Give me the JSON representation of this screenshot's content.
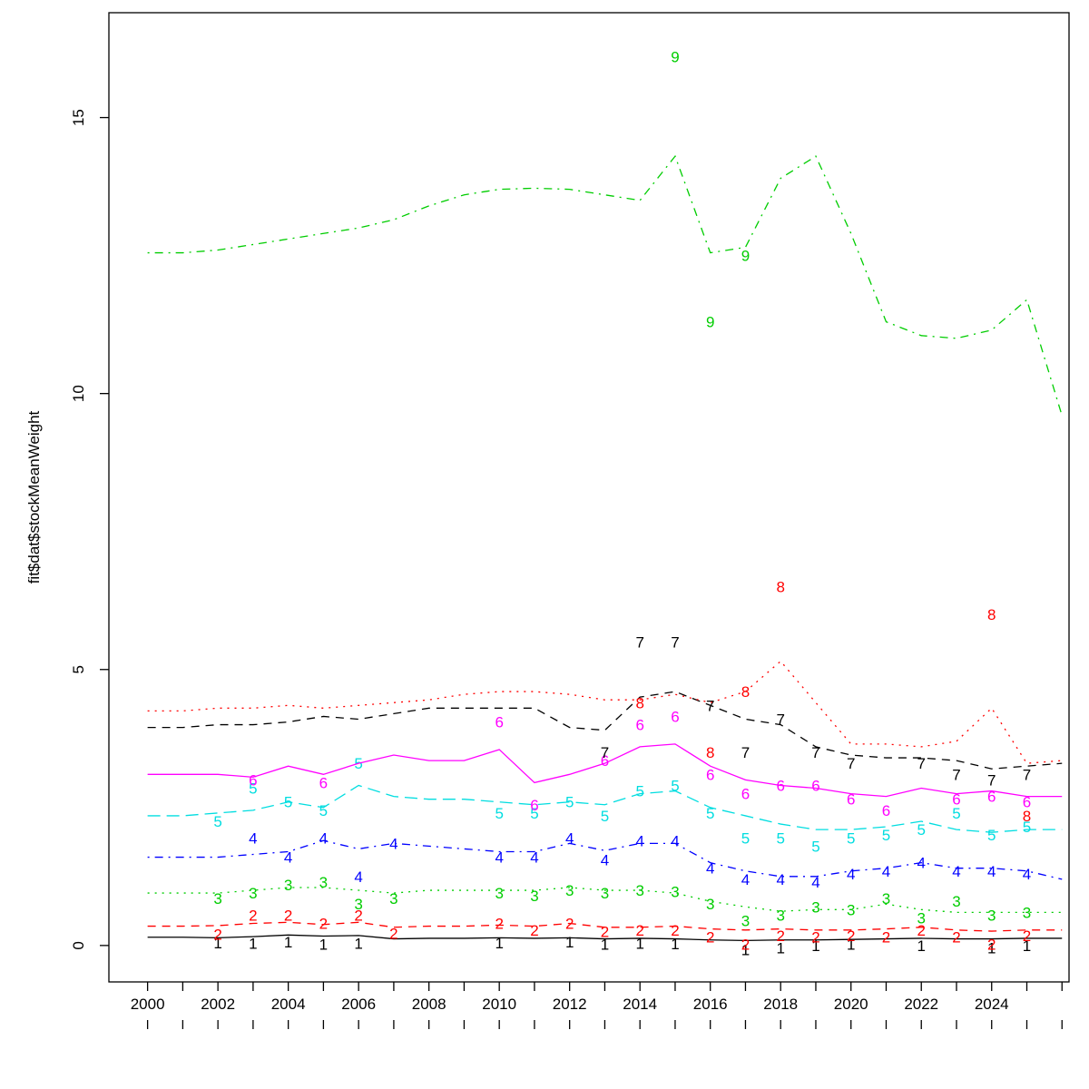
{
  "chart_data": {
    "type": "line",
    "title": "",
    "xlabel": "",
    "ylabel": "fit$dat$stockMeanWeight",
    "grid": false,
    "legend": "none",
    "x_domain": [
      1998.9,
      2026.2
    ],
    "y_domain": [
      -0.66,
      16.9
    ],
    "x_ticks": [
      2000,
      2001,
      2002,
      2003,
      2004,
      2005,
      2006,
      2007,
      2008,
      2009,
      2010,
      2011,
      2012,
      2013,
      2014,
      2015,
      2016,
      2017,
      2018,
      2019,
      2020,
      2021,
      2022,
      2023,
      2024,
      2025,
      2026
    ],
    "x_tick_labels": [
      2000,
      2002,
      2004,
      2006,
      2008,
      2010,
      2012,
      2014,
      2016,
      2018,
      2020,
      2022,
      2024
    ],
    "y_ticks": [
      0,
      5,
      10,
      15
    ],
    "years": [
      2000,
      2001,
      2002,
      2003,
      2004,
      2005,
      2006,
      2007,
      2008,
      2009,
      2010,
      2011,
      2012,
      2013,
      2014,
      2015,
      2016,
      2017,
      2018,
      2019,
      2020,
      2021,
      2022,
      2023,
      2024,
      2025,
      2026
    ],
    "series": [
      {
        "age": 1,
        "label": "1",
        "color": "#000000",
        "linetype": "solid",
        "values": [
          0.15,
          0.15,
          0.14,
          0.16,
          0.19,
          0.17,
          0.18,
          0.12,
          0.13,
          0.13,
          0.14,
          0.13,
          0.14,
          0.12,
          0.13,
          0.12,
          0.1,
          0.09,
          0.1,
          0.1,
          0.11,
          0.12,
          0.13,
          0.12,
          0.12,
          0.13,
          0.13
        ],
        "obs": [
          [
            2002,
            0.05
          ],
          [
            2003,
            0.04
          ],
          [
            2004,
            0.06
          ],
          [
            2005,
            0.02
          ],
          [
            2006,
            0.04
          ],
          [
            2010,
            0.05
          ],
          [
            2012,
            0.06
          ],
          [
            2013,
            0.02
          ],
          [
            2014,
            0.04
          ],
          [
            2015,
            0.03
          ],
          [
            2017,
            -0.08
          ],
          [
            2018,
            -0.04
          ],
          [
            2019,
            0.0
          ],
          [
            2020,
            0.02
          ],
          [
            2022,
            0.0
          ],
          [
            2024,
            -0.04
          ],
          [
            2025,
            0.0
          ]
        ]
      },
      {
        "age": 2,
        "label": "2",
        "color": "#ff0000",
        "linetype": "dashed",
        "values": [
          0.35,
          0.35,
          0.36,
          0.4,
          0.42,
          0.38,
          0.42,
          0.33,
          0.35,
          0.35,
          0.37,
          0.35,
          0.4,
          0.33,
          0.33,
          0.35,
          0.3,
          0.28,
          0.3,
          0.28,
          0.28,
          0.3,
          0.33,
          0.28,
          0.26,
          0.28,
          0.28
        ],
        "obs": [
          [
            2002,
            0.2
          ],
          [
            2003,
            0.55
          ],
          [
            2004,
            0.55
          ],
          [
            2005,
            0.4
          ],
          [
            2006,
            0.55
          ],
          [
            2007,
            0.22
          ],
          [
            2010,
            0.4
          ],
          [
            2011,
            0.28
          ],
          [
            2012,
            0.4
          ],
          [
            2013,
            0.25
          ],
          [
            2014,
            0.28
          ],
          [
            2015,
            0.28
          ],
          [
            2016,
            0.15
          ],
          [
            2017,
            0.02
          ],
          [
            2018,
            0.18
          ],
          [
            2019,
            0.15
          ],
          [
            2020,
            0.18
          ],
          [
            2021,
            0.15
          ],
          [
            2022,
            0.28
          ],
          [
            2023,
            0.15
          ],
          [
            2024,
            0.02
          ],
          [
            2025,
            0.18
          ]
        ]
      },
      {
        "age": 3,
        "label": "3",
        "color": "#00cd00",
        "linetype": "dotted",
        "values": [
          0.95,
          0.95,
          0.95,
          1.0,
          1.05,
          1.05,
          1.0,
          0.95,
          1.0,
          1.0,
          1.0,
          1.0,
          1.05,
          1.0,
          1.0,
          0.95,
          0.8,
          0.7,
          0.62,
          0.65,
          0.65,
          0.75,
          0.65,
          0.6,
          0.6,
          0.6,
          0.6
        ],
        "obs": [
          [
            2002,
            0.85
          ],
          [
            2003,
            0.95
          ],
          [
            2004,
            1.1
          ],
          [
            2005,
            1.15
          ],
          [
            2006,
            0.75
          ],
          [
            2007,
            0.85
          ],
          [
            2010,
            0.95
          ],
          [
            2011,
            0.9
          ],
          [
            2012,
            1.0
          ],
          [
            2013,
            0.95
          ],
          [
            2014,
            1.0
          ],
          [
            2015,
            0.98
          ],
          [
            2016,
            0.75
          ],
          [
            2017,
            0.45
          ],
          [
            2018,
            0.55
          ],
          [
            2019,
            0.7
          ],
          [
            2020,
            0.65
          ],
          [
            2021,
            0.85
          ],
          [
            2022,
            0.5
          ],
          [
            2023,
            0.8
          ],
          [
            2024,
            0.55
          ],
          [
            2025,
            0.6
          ]
        ]
      },
      {
        "age": 4,
        "label": "4",
        "color": "#0000ff",
        "linetype": "dotdash",
        "values": [
          1.6,
          1.6,
          1.6,
          1.65,
          1.7,
          1.9,
          1.75,
          1.85,
          1.8,
          1.75,
          1.7,
          1.7,
          1.85,
          1.72,
          1.85,
          1.85,
          1.5,
          1.35,
          1.25,
          1.25,
          1.35,
          1.4,
          1.5,
          1.4,
          1.4,
          1.35,
          1.2
        ],
        "obs": [
          [
            2003,
            1.95
          ],
          [
            2004,
            1.6
          ],
          [
            2005,
            1.95
          ],
          [
            2006,
            1.25
          ],
          [
            2007,
            1.85
          ],
          [
            2010,
            1.6
          ],
          [
            2011,
            1.6
          ],
          [
            2012,
            1.95
          ],
          [
            2013,
            1.55
          ],
          [
            2014,
            1.9
          ],
          [
            2015,
            1.9
          ],
          [
            2016,
            1.4
          ],
          [
            2017,
            1.2
          ],
          [
            2018,
            1.2
          ],
          [
            2019,
            1.15
          ],
          [
            2020,
            1.3
          ],
          [
            2021,
            1.35
          ],
          [
            2022,
            1.5
          ],
          [
            2023,
            1.35
          ],
          [
            2024,
            1.35
          ],
          [
            2025,
            1.3
          ]
        ]
      },
      {
        "age": 5,
        "label": "5",
        "color": "#00dde0",
        "linetype": "longdash",
        "values": [
          2.35,
          2.35,
          2.4,
          2.45,
          2.6,
          2.5,
          2.9,
          2.7,
          2.65,
          2.65,
          2.6,
          2.55,
          2.6,
          2.55,
          2.75,
          2.8,
          2.5,
          2.35,
          2.2,
          2.1,
          2.1,
          2.15,
          2.25,
          2.1,
          2.05,
          2.1,
          2.1
        ],
        "obs": [
          [
            2002,
            2.25
          ],
          [
            2003,
            2.85
          ],
          [
            2004,
            2.6
          ],
          [
            2005,
            2.45
          ],
          [
            2006,
            3.3
          ],
          [
            2010,
            2.4
          ],
          [
            2011,
            2.4
          ],
          [
            2012,
            2.6
          ],
          [
            2013,
            2.35
          ],
          [
            2014,
            2.8
          ],
          [
            2015,
            2.9
          ],
          [
            2016,
            2.4
          ],
          [
            2017,
            1.95
          ],
          [
            2018,
            1.95
          ],
          [
            2019,
            1.8
          ],
          [
            2020,
            1.95
          ],
          [
            2021,
            2.0
          ],
          [
            2022,
            2.1
          ],
          [
            2023,
            2.4
          ],
          [
            2024,
            2.0
          ],
          [
            2025,
            2.15
          ]
        ]
      },
      {
        "age": 6,
        "label": "6",
        "color": "#ff00ff",
        "linetype": "solid",
        "values": [
          3.1,
          3.1,
          3.1,
          3.05,
          3.25,
          3.1,
          3.3,
          3.45,
          3.35,
          3.35,
          3.55,
          2.95,
          3.1,
          3.3,
          3.6,
          3.65,
          3.25,
          3.0,
          2.9,
          2.85,
          2.75,
          2.7,
          2.85,
          2.75,
          2.8,
          2.7,
          2.7
        ],
        "obs": [
          [
            2003,
            3.0
          ],
          [
            2005,
            2.95
          ],
          [
            2010,
            4.05
          ],
          [
            2011,
            2.55
          ],
          [
            2013,
            3.35
          ],
          [
            2014,
            4.0
          ],
          [
            2015,
            4.15
          ],
          [
            2016,
            3.1
          ],
          [
            2017,
            2.75
          ],
          [
            2018,
            2.9
          ],
          [
            2019,
            2.9
          ],
          [
            2020,
            2.65
          ],
          [
            2021,
            2.45
          ],
          [
            2023,
            2.65
          ],
          [
            2024,
            2.7
          ],
          [
            2025,
            2.6
          ]
        ]
      },
      {
        "age": 7,
        "label": "7",
        "color": "#000000",
        "linetype": "dashed",
        "values": [
          3.95,
          3.95,
          4.0,
          4.0,
          4.05,
          4.15,
          4.1,
          4.2,
          4.3,
          4.3,
          4.3,
          4.3,
          3.95,
          3.9,
          4.5,
          4.6,
          4.35,
          4.1,
          4.0,
          3.6,
          3.45,
          3.4,
          3.4,
          3.35,
          3.2,
          3.25,
          3.3
        ],
        "obs": [
          [
            2013,
            3.5
          ],
          [
            2014,
            5.5
          ],
          [
            2015,
            5.5
          ],
          [
            2016,
            4.35
          ],
          [
            2017,
            3.5
          ],
          [
            2018,
            4.1
          ],
          [
            2019,
            3.5
          ],
          [
            2020,
            3.3
          ],
          [
            2022,
            3.3
          ],
          [
            2023,
            3.1
          ],
          [
            2024,
            3.0
          ],
          [
            2025,
            3.1
          ]
        ]
      },
      {
        "age": 8,
        "label": "8",
        "color": "#ff0000",
        "linetype": "dotted",
        "values": [
          4.25,
          4.25,
          4.3,
          4.3,
          4.35,
          4.3,
          4.35,
          4.4,
          4.45,
          4.55,
          4.6,
          4.6,
          4.55,
          4.45,
          4.45,
          4.55,
          4.4,
          4.6,
          5.15,
          4.4,
          3.65,
          3.65,
          3.6,
          3.7,
          4.3,
          3.3,
          3.35
        ],
        "obs": [
          [
            2014,
            4.4
          ],
          [
            2016,
            3.5
          ],
          [
            2017,
            4.6
          ],
          [
            2018,
            6.5
          ],
          [
            2024,
            6.0
          ],
          [
            2025,
            2.35
          ]
        ]
      },
      {
        "age": 9,
        "label": "9",
        "color": "#00cd00",
        "linetype": "dotdash",
        "values": [
          12.55,
          12.55,
          12.6,
          12.7,
          12.8,
          12.9,
          13.0,
          13.15,
          13.4,
          13.6,
          13.7,
          13.72,
          13.7,
          13.6,
          13.5,
          14.3,
          12.55,
          12.65,
          13.9,
          14.3,
          12.9,
          11.3,
          11.05,
          11.0,
          11.15,
          11.7,
          9.6
        ],
        "obs": [
          [
            2015,
            16.1
          ],
          [
            2016,
            11.3
          ],
          [
            2017,
            12.5
          ]
        ]
      }
    ]
  }
}
